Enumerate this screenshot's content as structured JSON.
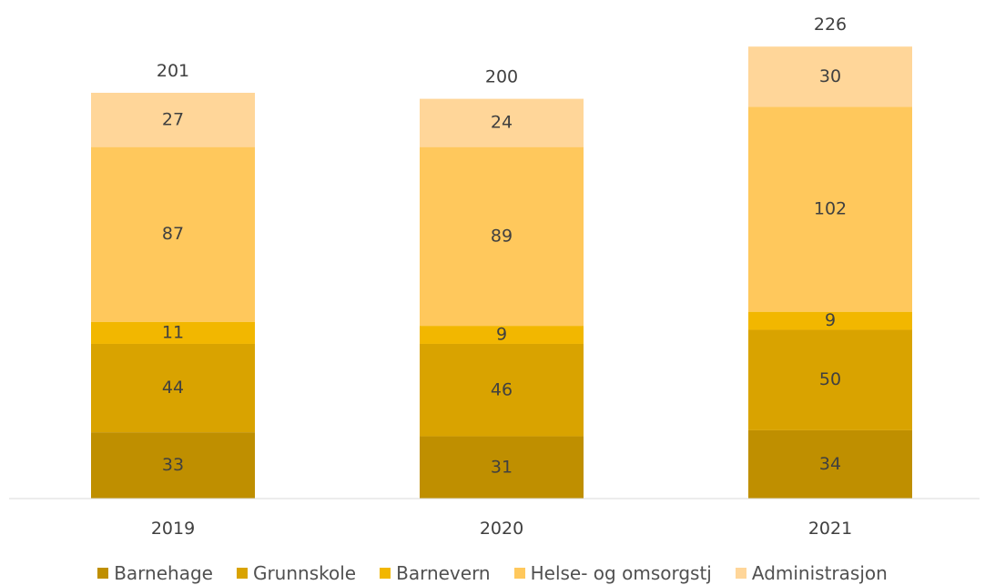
{
  "chart_data": {
    "type": "bar",
    "stacked": true,
    "categories": [
      "2019",
      "2020",
      "2021"
    ],
    "series": [
      {
        "name": "Barnehage",
        "values": [
          33,
          31,
          34
        ],
        "color": "#BF8F00"
      },
      {
        "name": "Grunnskole",
        "values": [
          44,
          46,
          50
        ],
        "color": "#D9A300"
      },
      {
        "name": "Barnevern",
        "values": [
          11,
          9,
          9
        ],
        "color": "#F2B700"
      },
      {
        "name": "Helse- og omsorgstj",
        "values": [
          87,
          89,
          102
        ],
        "color": "#FFC85C"
      },
      {
        "name": "Administrasjon",
        "values": [
          27,
          24,
          30
        ],
        "color": "#FFD699"
      }
    ],
    "totals": [
      201,
      200,
      226
    ],
    "legend_position": "bottom",
    "grid": false,
    "ylim": [
      0,
      226
    ]
  }
}
